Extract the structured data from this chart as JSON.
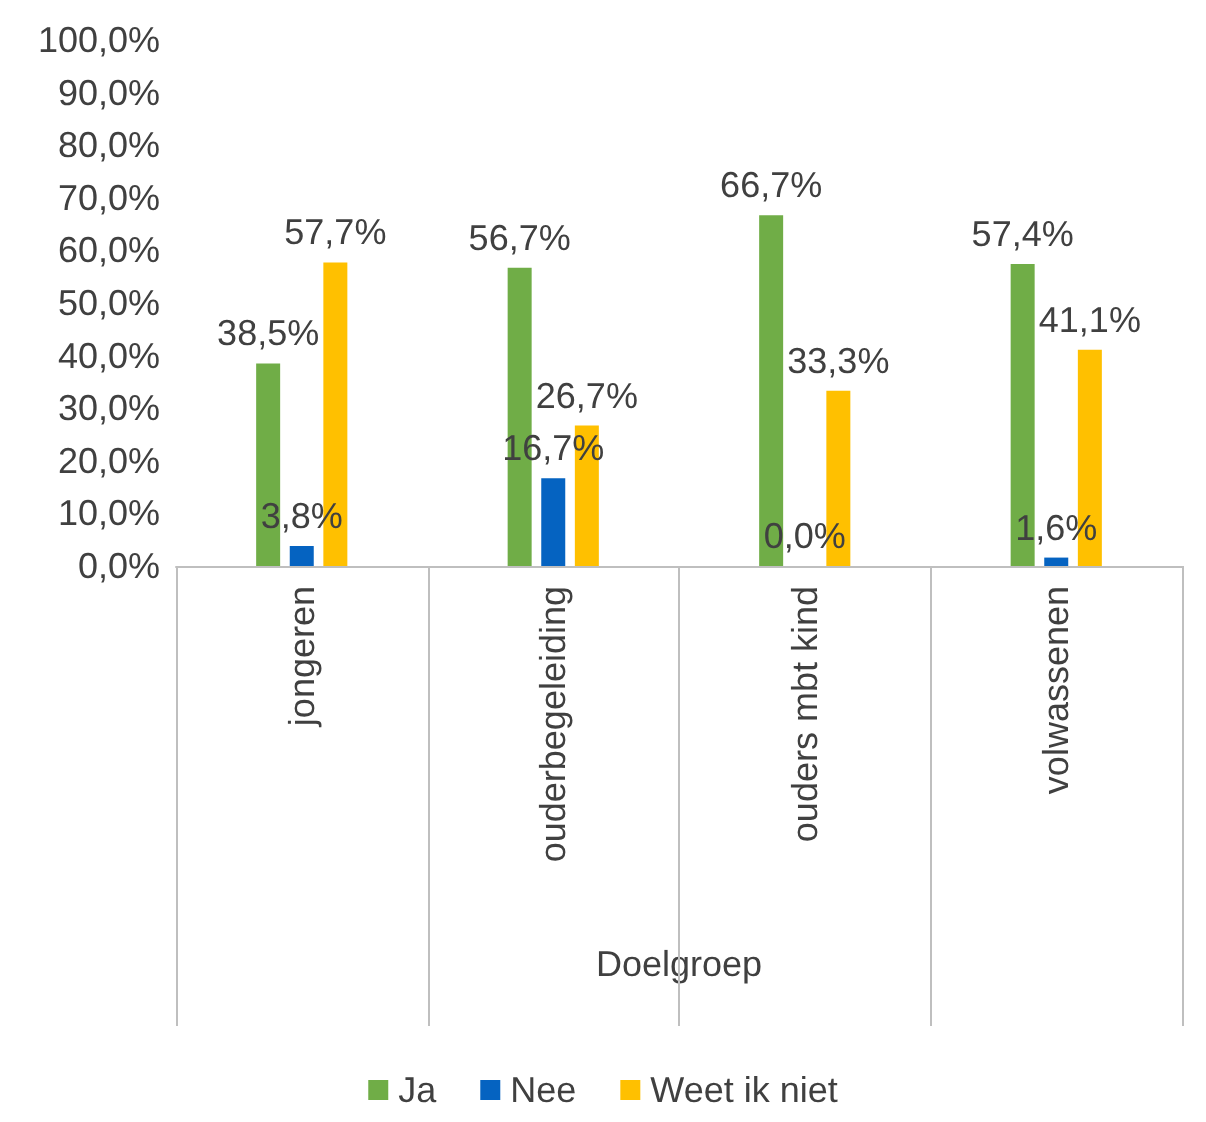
{
  "chart_data": {
    "type": "bar",
    "xlabel": "Doelgroep",
    "categories": [
      "jongeren",
      "ouderbegeleiding",
      "ouders mbt kind",
      "volwassenen"
    ],
    "series": [
      {
        "name": "Ja",
        "color": "#70ad47",
        "values": [
          38.5,
          56.7,
          66.7,
          57.4
        ],
        "value_labels": [
          "38,5%",
          "56,7%",
          "66,7%",
          "57,4%"
        ]
      },
      {
        "name": "Nee",
        "color": "#0563c1",
        "values": [
          3.8,
          16.7,
          0.0,
          1.6
        ],
        "value_labels": [
          "3,8%",
          "16,7%",
          "0,0%",
          "1,6%"
        ]
      },
      {
        "name": "Weet ik niet",
        "color": "#ffc000",
        "values": [
          57.7,
          26.7,
          33.3,
          41.1
        ],
        "value_labels": [
          "57,7%",
          "26,7%",
          "33,3%",
          "41,1%"
        ]
      }
    ],
    "ylim": [
      0,
      100
    ],
    "yticks": [
      {
        "value": 0,
        "label": "0,0%"
      },
      {
        "value": 10,
        "label": "10,0%"
      },
      {
        "value": 20,
        "label": "20,0%"
      },
      {
        "value": 30,
        "label": "30,0%"
      },
      {
        "value": 40,
        "label": "40,0%"
      },
      {
        "value": 50,
        "label": "50,0%"
      },
      {
        "value": 60,
        "label": "60,0%"
      },
      {
        "value": 70,
        "label": "70,0%"
      },
      {
        "value": 80,
        "label": "80,0%"
      },
      {
        "value": 90,
        "label": "90,0%"
      },
      {
        "value": 100,
        "label": "100,0%"
      }
    ],
    "grid": false,
    "legend": "bottom"
  }
}
